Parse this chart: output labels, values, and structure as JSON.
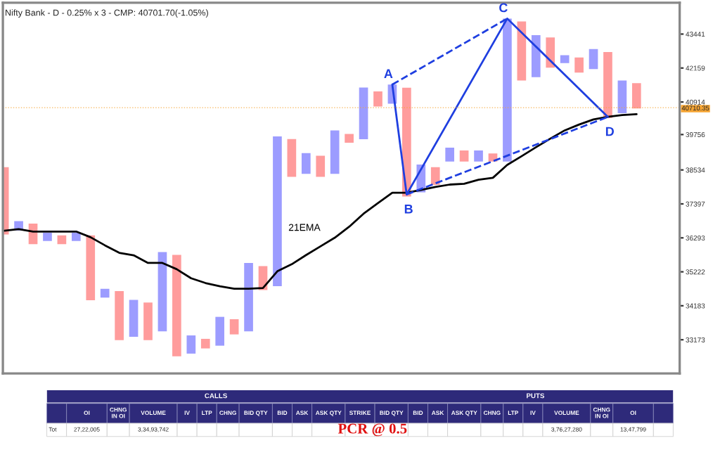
{
  "chart_data": [
    {
      "type": "bar",
      "title": "Nifty Bank - D - 0.25% x 3 - CMP: 40701.70(-1.05%)",
      "categories": [
        null,
        null,
        null,
        null,
        null,
        null,
        null,
        null,
        null,
        null,
        null,
        null,
        null,
        null,
        null,
        null,
        null,
        null,
        null,
        null,
        null,
        null,
        null,
        null,
        null,
        null,
        null,
        null,
        null,
        null,
        null,
        null,
        null,
        null,
        null,
        null,
        null,
        null,
        null,
        null,
        null,
        null,
        null,
        null,
        null
      ],
      "base": [
        36400,
        36530,
        36090,
        36190,
        36090,
        36190,
        34350,
        34430,
        33160,
        33260,
        33160,
        33420,
        32690,
        32770,
        32920,
        33000,
        33330,
        33420,
        34660,
        34780,
        38300,
        38400,
        38300,
        38400,
        39470,
        39590,
        40750,
        40850,
        37640,
        37780,
        38030,
        38820,
        38820,
        38820,
        38820,
        38820,
        41700,
        41820,
        42170,
        42340,
        41990,
        42120,
        40340,
        40510,
        40680
      ],
      "values": [
        2230,
        300,
        660,
        270,
        280,
        270,
        2020,
        270,
        1470,
        1100,
        1120,
        2420,
        3060,
        530,
        280,
        850,
        450,
        2080,
        740,
        4910,
        1300,
        710,
        720,
        1500,
        310,
        1850,
        550,
        700,
        3790,
        940,
        600,
        480,
        380,
        380,
        280,
        5220,
        2230,
        1580,
        1140,
        300,
        560,
        750,
        2420,
        1190,
        920
      ],
      "colors": [
        "#ff9c9c",
        "#9c9cff",
        "#ff9c9c",
        "#9c9cff",
        "#ff9c9c",
        "#9c9cff",
        "#ff9c9c",
        "#9c9cff",
        "#ff9c9c",
        "#9c9cff",
        "#ff9c9c",
        "#9c9cff",
        "#ff9c9c",
        "#9c9cff",
        "#ff9c9c",
        "#9c9cff",
        "#ff9c9c",
        "#9c9cff",
        "#ff9c9c",
        "#9c9cff",
        "#ff9c9c",
        "#9c9cff",
        "#ff9c9c",
        "#9c9cff",
        "#ff9c9c",
        "#9c9cff",
        "#ff9c9c",
        "#9c9cff",
        "#ff9c9c",
        "#9c9cff",
        "#ff9c9c",
        "#9c9cff",
        "#ff9c9c",
        "#9c9cff",
        "#ff9c9c",
        "#9c9cff",
        "#ff9c9c",
        "#9c9cff",
        "#ff9c9c",
        "#9c9cff",
        "#ff9c9c",
        "#9c9cff",
        "#ff9c9c",
        "#9c9cff",
        "#ff9c9c"
      ],
      "series": [
        {
          "type": "line",
          "name": "21EMA",
          "color": "#000000",
          "values": [
            36525,
            36573,
            36496,
            36496,
            36496,
            36496,
            36313,
            36055,
            35818,
            35739,
            35500,
            35500,
            35303,
            35022,
            34875,
            34775,
            34701,
            34701,
            34722,
            35239,
            35457,
            35746,
            36022,
            36299,
            36651,
            37074,
            37422,
            37768,
            37768,
            37863,
            37960,
            38040,
            38065,
            38202,
            38267,
            38707,
            39004,
            39315,
            39614,
            39903,
            40109,
            40289,
            40381,
            40445,
            40478
          ]
        },
        {
          "type": "line",
          "color": "#1f3fe0",
          "line_style": "solid",
          "values": [
            null,
            null,
            null,
            null,
            null,
            null,
            null,
            null,
            null,
            null,
            null,
            null,
            null,
            null,
            null,
            null,
            null,
            null,
            null,
            null,
            null,
            null,
            null,
            null,
            null,
            null,
            null,
            41550,
            37710,
            null,
            null,
            null,
            null,
            null,
            null,
            44040,
            null,
            null,
            null,
            null,
            null,
            null,
            40380,
            null,
            null
          ]
        },
        {
          "type": "line",
          "color": "#1f3fe0",
          "line_style": "dashed",
          "values": [
            null,
            null,
            null,
            null,
            null,
            null,
            null,
            null,
            null,
            null,
            null,
            null,
            null,
            null,
            null,
            null,
            null,
            null,
            null,
            null,
            null,
            null,
            null,
            null,
            null,
            null,
            null,
            41550,
            null,
            null,
            null,
            null,
            null,
            null,
            null,
            44040,
            null,
            null,
            null,
            null,
            null,
            null,
            null,
            null,
            null
          ]
        },
        {
          "type": "line",
          "color": "#1f3fe0",
          "line_style": "dashed",
          "values": [
            null,
            null,
            null,
            null,
            null,
            null,
            null,
            null,
            null,
            null,
            null,
            null,
            null,
            null,
            null,
            null,
            null,
            null,
            null,
            null,
            null,
            null,
            null,
            null,
            null,
            null,
            null,
            null,
            37710,
            null,
            null,
            null,
            null,
            null,
            null,
            null,
            null,
            null,
            null,
            null,
            null,
            null,
            40380,
            null,
            null
          ]
        }
      ],
      "annotations": [
        "A",
        "B",
        "C",
        "D"
      ],
      "ref_lines": [
        {
          "axis": "y",
          "value": 40710.35,
          "label": "40710.35",
          "color": "#f5a433"
        }
      ],
      "log": "y",
      "ylim": [
        32200,
        44660
      ],
      "yticks": [
        33173,
        34183,
        35222,
        36293,
        37397,
        38534,
        39756,
        40914,
        42159,
        43441
      ],
      "tick_labels": "y",
      "grid": false,
      "legend": false
    },
    {
      "type": "other",
      "categories": [
        "OI",
        "CHNG IN OI",
        "VOLUME",
        "IV",
        "LTP",
        "CHNG",
        "BID QTY",
        "BID",
        "ASK",
        "ASK QTY",
        "STRIKE",
        "BID QTY",
        "BID",
        "ASK",
        "ASK QTY",
        "CHNG",
        "LTP",
        "IV",
        "VOLUME",
        "CHNG IN OI",
        "OI",
        null
      ],
      "y_categories": [
        "Tot"
      ],
      "cell_labels": [
        [
          "27,22,005",
          null,
          "3,34,93,742",
          null,
          null,
          null,
          null,
          null,
          null,
          null,
          null,
          null,
          null,
          null,
          null,
          null,
          null,
          null,
          "3,76,27,280",
          null,
          "13,47,799",
          null
        ]
      ],
      "annotations": [
        "CALLS",
        "PUTS",
        "PCR @ 0.5"
      ]
    }
  ]
}
